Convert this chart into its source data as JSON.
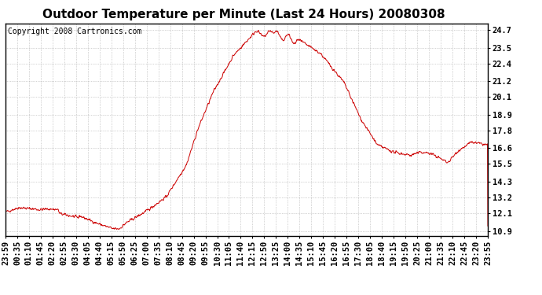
{
  "title": "Outdoor Temperature per Minute (Last 24 Hours) 20080308",
  "copyright_text": "Copyright 2008 Cartronics.com",
  "line_color": "#cc0000",
  "background_color": "#ffffff",
  "plot_background": "#ffffff",
  "grid_color": "#aaaaaa",
  "yticks": [
    10.9,
    12.1,
    13.2,
    14.3,
    15.5,
    16.6,
    17.8,
    18.9,
    20.1,
    21.2,
    22.4,
    23.5,
    24.7
  ],
  "ylim": [
    10.55,
    25.15
  ],
  "xtick_labels": [
    "23:59",
    "00:35",
    "01:10",
    "01:45",
    "02:20",
    "02:55",
    "03:30",
    "04:05",
    "04:40",
    "05:15",
    "05:50",
    "06:25",
    "07:00",
    "07:35",
    "08:10",
    "08:45",
    "09:20",
    "09:55",
    "10:30",
    "11:05",
    "11:40",
    "12:15",
    "12:50",
    "13:25",
    "14:00",
    "14:35",
    "15:10",
    "15:45",
    "16:20",
    "16:55",
    "17:30",
    "18:05",
    "18:40",
    "19:15",
    "19:50",
    "20:25",
    "21:00",
    "21:35",
    "22:10",
    "22:45",
    "23:20",
    "23:55"
  ],
  "title_fontsize": 11,
  "copyright_fontsize": 7,
  "tick_fontsize": 7.5
}
